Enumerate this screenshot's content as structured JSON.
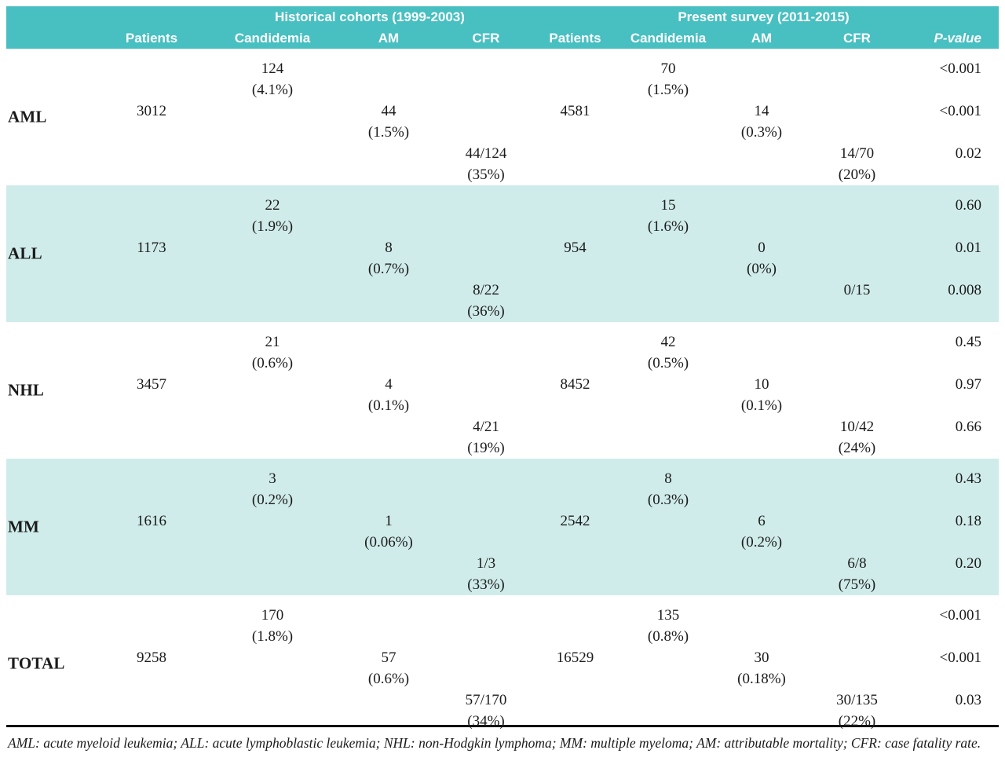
{
  "header": {
    "group_historical": "Historical cohorts (1999-2003)",
    "group_present": "Present survey (2011-2015)",
    "columns": [
      "Patients",
      "Candidemia",
      "AM",
      "CFR",
      "Patients",
      "Candidemia",
      "AM",
      "CFR",
      "P-value"
    ]
  },
  "colors": {
    "header_teal": "#48bfc1",
    "row_stripe_teal": "#cfecea"
  },
  "rows": [
    {
      "label": "AML",
      "hist": {
        "patients": "3012",
        "candidemia": "124",
        "candidemia_pct": "(4.1%)",
        "am": "44",
        "am_pct": "(1.5%)",
        "cfr": "44/124",
        "cfr_pct": "(35%)"
      },
      "present": {
        "patients": "4581",
        "candidemia": "70",
        "candidemia_pct": "(1.5%)",
        "am": "14",
        "am_pct": "(0.3%)",
        "cfr": "14/70",
        "cfr_pct": "(20%)"
      },
      "p": {
        "candidemia": "<0.001",
        "am": "<0.001",
        "cfr": "0.02"
      }
    },
    {
      "label": "ALL",
      "hist": {
        "patients": "1173",
        "candidemia": "22",
        "candidemia_pct": "(1.9%)",
        "am": "8",
        "am_pct": "(0.7%)",
        "cfr": "8/22",
        "cfr_pct": "(36%)"
      },
      "present": {
        "patients": "954",
        "candidemia": "15",
        "candidemia_pct": "(1.6%)",
        "am": "0",
        "am_pct": "(0%)",
        "cfr": "0/15",
        "cfr_pct": ""
      },
      "p": {
        "candidemia": "0.60",
        "am": "0.01",
        "cfr": "0.008"
      }
    },
    {
      "label": "NHL",
      "hist": {
        "patients": "3457",
        "candidemia": "21",
        "candidemia_pct": "(0.6%)",
        "am": "4",
        "am_pct": "(0.1%)",
        "cfr": "4/21",
        "cfr_pct": "(19%)"
      },
      "present": {
        "patients": "8452",
        "candidemia": "42",
        "candidemia_pct": "(0.5%)",
        "am": "10",
        "am_pct": "(0.1%)",
        "cfr": "10/42",
        "cfr_pct": "(24%)"
      },
      "p": {
        "candidemia": "0.45",
        "am": "0.97",
        "cfr": "0.66"
      }
    },
    {
      "label": "MM",
      "hist": {
        "patients": "1616",
        "candidemia": "3",
        "candidemia_pct": "(0.2%)",
        "am": "1",
        "am_pct": "(0.06%)",
        "cfr": "1/3",
        "cfr_pct": "(33%)"
      },
      "present": {
        "patients": "2542",
        "candidemia": "8",
        "candidemia_pct": "(0.3%)",
        "am": "6",
        "am_pct": "(0.2%)",
        "cfr": "6/8",
        "cfr_pct": "(75%)"
      },
      "p": {
        "candidemia": "0.43",
        "am": "0.18",
        "cfr": "0.20"
      }
    },
    {
      "label": "TOTAL",
      "hist": {
        "patients": "9258",
        "candidemia": "170",
        "candidemia_pct": "(1.8%)",
        "am": "57",
        "am_pct": "(0.6%)",
        "cfr": "57/170",
        "cfr_pct": "(34%)"
      },
      "present": {
        "patients": "16529",
        "candidemia": "135",
        "candidemia_pct": "(0.8%)",
        "am": "30",
        "am_pct": "(0.18%)",
        "cfr": "30/135",
        "cfr_pct": "(22%)"
      },
      "p": {
        "candidemia": "<0.001",
        "am": "<0.001",
        "cfr": "0.03"
      }
    }
  ],
  "footnote": "AML: acute myeloid leukemia; ALL: acute lymphoblastic leukemia; NHL: non-Hodgkin lymphoma; MM: multiple myeloma; AM: attributable mortality; CFR: case fatality rate."
}
